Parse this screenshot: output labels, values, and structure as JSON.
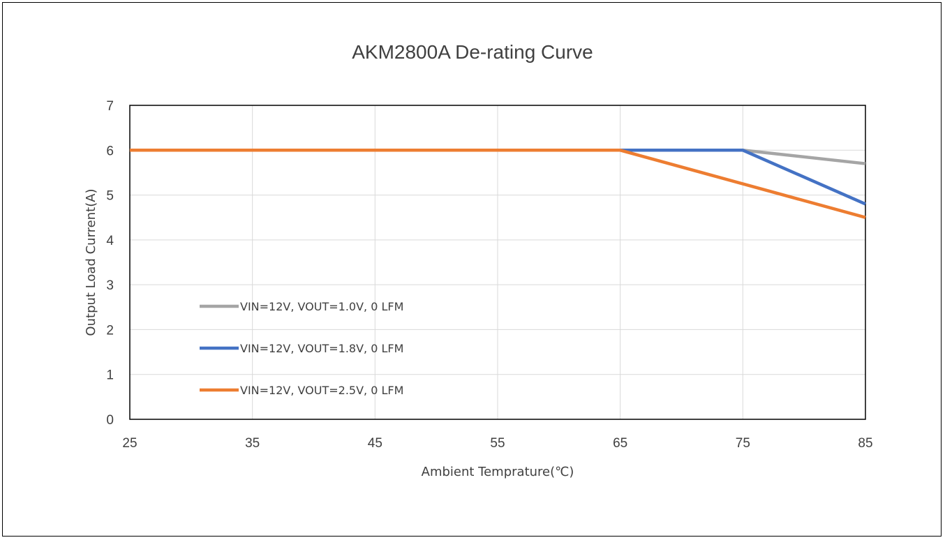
{
  "chart_data": {
    "type": "line",
    "title": "AKM2800A De-rating Curve",
    "xlabel": "Ambient Temprature(℃)",
    "ylabel": "Output Load Current(A)",
    "xlim": [
      25,
      85
    ],
    "ylim": [
      0,
      7
    ],
    "x_ticks": [
      25,
      35,
      45,
      55,
      65,
      75,
      85
    ],
    "y_ticks": [
      0,
      1,
      2,
      3,
      4,
      5,
      6,
      7
    ],
    "grid": true,
    "legend_position": "lower-left",
    "series": [
      {
        "name": "VIN=12V, VOUT=1.0V, 0 LFM",
        "color": "#a5a5a5",
        "points": [
          [
            25,
            6
          ],
          [
            75,
            6
          ],
          [
            85,
            5.7
          ]
        ]
      },
      {
        "name": "VIN=12V, VOUT=1.8V, 0 LFM",
        "color": "#4472c4",
        "points": [
          [
            25,
            6
          ],
          [
            75,
            6
          ],
          [
            85,
            4.8
          ]
        ]
      },
      {
        "name": "VIN=12V, VOUT=2.5V, 0 LFM",
        "color": "#ed7d31",
        "points": [
          [
            25,
            6
          ],
          [
            65,
            6
          ],
          [
            85,
            4.5
          ]
        ]
      }
    ]
  }
}
